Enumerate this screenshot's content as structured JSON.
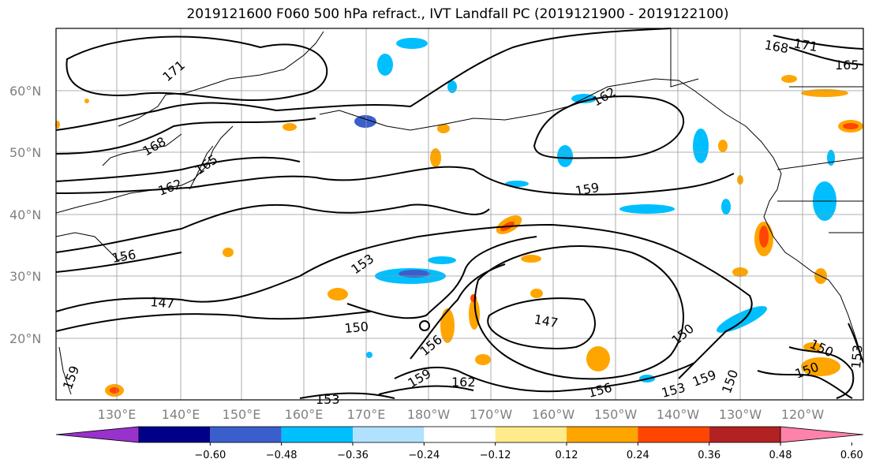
{
  "title": "2019121600 F060 500 hPa refract., IVT Landfall PC (2019121900 - 2019122100)",
  "lat_labels": [
    "60°N",
    "50°N",
    "40°N",
    "30°N",
    "20°N"
  ],
  "lon_labels": [
    "130°E",
    "140°E",
    "150°E",
    "160°E",
    "170°E",
    "180°W",
    "170°W",
    "160°W",
    "150°W",
    "140°W",
    "130°W",
    "120°W"
  ],
  "contour_labels": [
    "171",
    "168",
    "165",
    "162",
    "159",
    "156",
    "153",
    "150",
    "147",
    "171",
    "168",
    "165",
    "162",
    "159",
    "153",
    "147",
    "150",
    "156",
    "159",
    "162",
    "156",
    "153",
    "159",
    "150",
    "150",
    "150",
    "153"
  ],
  "colorbar": {
    "ticks": [
      "−0.60",
      "−0.48",
      "−0.36",
      "−0.24",
      "−0.12",
      "0.12",
      "0.24",
      "0.36",
      "0.48",
      "0.60"
    ],
    "colors": [
      "#9932cc",
      "#00008b",
      "#3a5fcd",
      "#00bfff",
      "#b0e2ff",
      "#ffffff",
      "#ffeb8b",
      "#ffa500",
      "#ff4500",
      "#b22222",
      "#ff82ab"
    ]
  }
}
